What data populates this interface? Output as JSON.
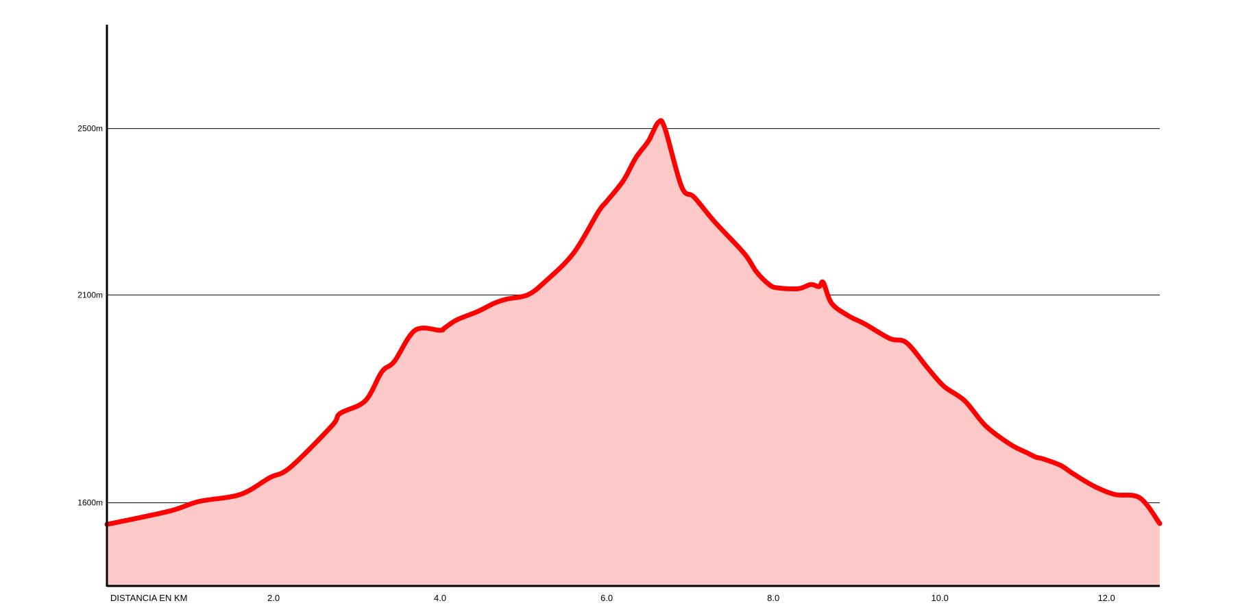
{
  "chart_data": {
    "type": "area",
    "title": "",
    "xlabel": "DISTANCIA EN KM",
    "ylabel": "",
    "x_ticks": [
      "2.0",
      "4.0",
      "6.0",
      "8.0",
      "10.0",
      "12.0"
    ],
    "y_ticks": [
      "1600m",
      "2100m",
      "2500m"
    ],
    "xlim": [
      0,
      12.64
    ],
    "ylim": [
      1400,
      2750
    ],
    "grid": true,
    "colors": {
      "line": "#ff0000",
      "fill": "#fcc8c8",
      "grid": "#000000"
    },
    "series": [
      {
        "x": [
          0,
          0.75,
          1.1,
          1.6,
          1.95,
          2.2,
          2.7,
          2.8,
          3.1,
          3.3,
          3.45,
          3.7,
          4.0,
          4.05,
          4.2,
          4.45,
          4.65,
          4.8,
          5.05,
          5.25,
          5.6,
          5.9,
          6.0,
          6.2,
          6.35,
          6.5,
          6.62,
          6.7,
          6.9,
          7.05,
          7.3,
          7.65,
          7.8,
          7.95,
          8.05,
          8.3,
          8.45,
          8.55,
          8.6,
          8.7,
          8.9,
          9.1,
          9.4,
          9.6,
          9.85,
          10.05,
          10.3,
          10.55,
          10.85,
          11.05,
          11.15,
          11.25,
          11.45,
          11.6,
          11.85,
          12.1,
          12.4,
          12.64
        ],
        "y": [
          1548,
          1580,
          1603,
          1620,
          1660,
          1685,
          1785,
          1815,
          1845,
          1915,
          1940,
          2015,
          2015,
          2020,
          2040,
          2060,
          2080,
          2090,
          2100,
          2130,
          2200,
          2300,
          2325,
          2375,
          2430,
          2470,
          2515,
          2500,
          2360,
          2335,
          2275,
          2200,
          2155,
          2125,
          2117,
          2115,
          2125,
          2120,
          2130,
          2080,
          2050,
          2030,
          1995,
          1985,
          1925,
          1880,
          1845,
          1785,
          1740,
          1720,
          1710,
          1705,
          1690,
          1670,
          1640,
          1620,
          1612,
          1550
        ]
      }
    ]
  }
}
